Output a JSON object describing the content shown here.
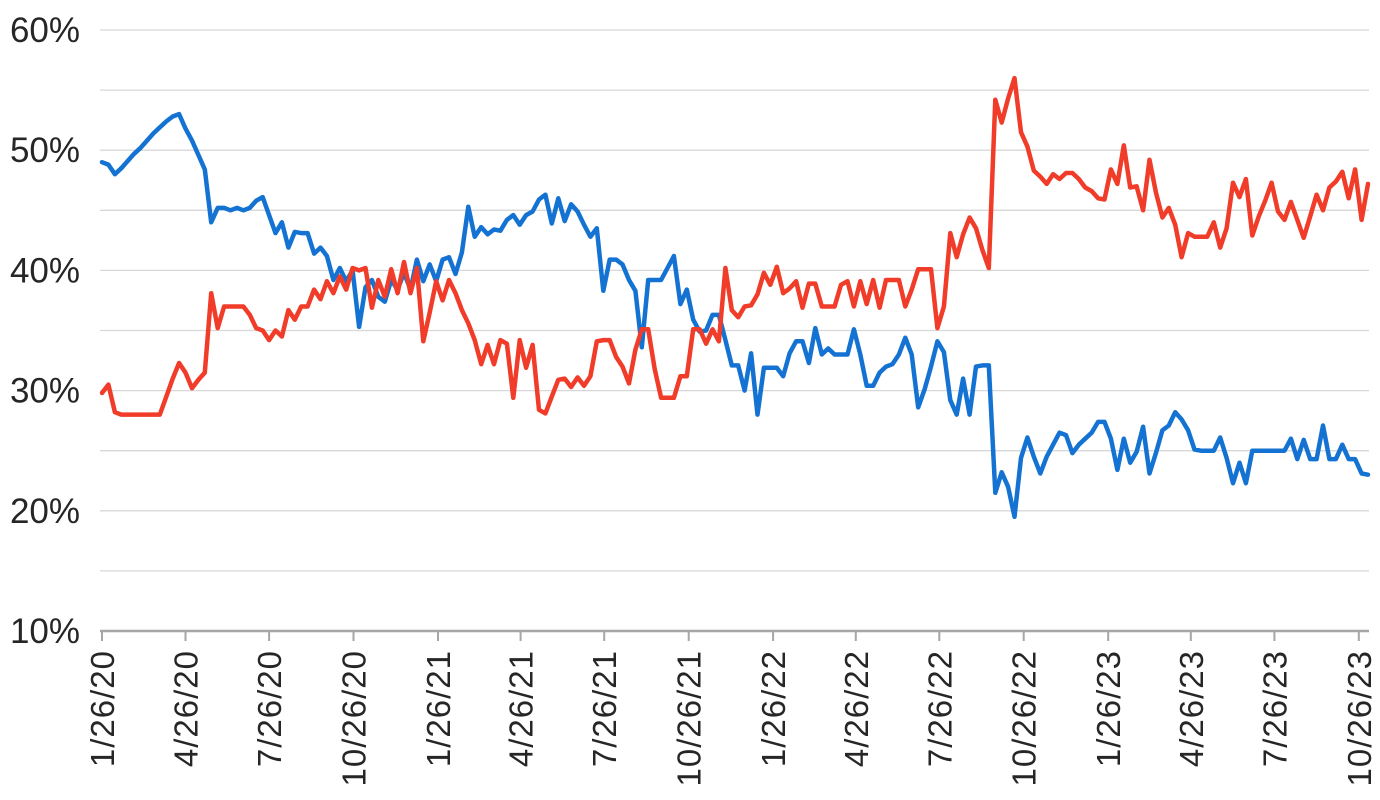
{
  "chart_data": {
    "type": "line",
    "title": "",
    "legend": "none",
    "grid_on": true,
    "x_axis": {
      "unit": "weeks since 1/26/20",
      "total_weeks": 197,
      "tick_labels": [
        "1/26/20",
        "4/26/20",
        "7/26/20",
        "10/26/20",
        "1/26/21",
        "4/26/21",
        "7/26/21",
        "10/26/21",
        "1/26/22",
        "4/26/22",
        "7/26/22",
        "10/26/22",
        "1/26/23",
        "4/26/23",
        "7/26/23",
        "10/26/23"
      ],
      "tick_weeks": [
        0,
        13,
        26,
        39.14,
        52.29,
        65.14,
        78.14,
        91.29,
        104.43,
        117.29,
        130.29,
        143.43,
        156.57,
        169.43,
        182.43,
        195.57
      ]
    },
    "y_axis": {
      "tick_labels": [
        "10%",
        "20%",
        "30%",
        "40%",
        "50%",
        "60%"
      ],
      "tick_values": [
        10,
        20,
        30,
        40,
        50,
        60
      ],
      "min": 10,
      "max": 60,
      "gridline_step": 5
    },
    "series": [
      {
        "name": "blue",
        "color": "#1473D2",
        "values": [
          49.0,
          48.8,
          48.0,
          48.5,
          49.1,
          49.7,
          50.2,
          50.8,
          51.4,
          51.9,
          52.4,
          52.8,
          53.0,
          51.8,
          50.8,
          49.6,
          48.4,
          44.0,
          45.2,
          45.2,
          45.0,
          45.2,
          45.0,
          45.2,
          45.8,
          46.1,
          44.6,
          43.1,
          44.0,
          41.9,
          43.2,
          43.1,
          43.1,
          41.4,
          41.9,
          41.2,
          39.2,
          40.2,
          39.1,
          40.0,
          35.3,
          38.6,
          39.2,
          37.8,
          37.4,
          39.2,
          38.4,
          39.8,
          38.4,
          40.9,
          39.1,
          40.5,
          39.1,
          40.9,
          41.1,
          39.7,
          41.5,
          45.3,
          42.8,
          43.6,
          43.0,
          43.4,
          43.3,
          44.2,
          44.6,
          43.8,
          44.6,
          44.9,
          45.9,
          46.3,
          43.9,
          46.0,
          44.1,
          45.5,
          44.9,
          43.8,
          42.8,
          43.5,
          38.3,
          40.9,
          40.9,
          40.5,
          39.2,
          38.3,
          33.6,
          39.2,
          39.2,
          39.2,
          40.2,
          41.2,
          37.2,
          38.4,
          35.9,
          34.9,
          35.0,
          36.3,
          36.3,
          34.2,
          32.1,
          32.1,
          30.0,
          33.1,
          28.0,
          31.9,
          31.9,
          31.9,
          31.2,
          33.1,
          34.1,
          34.1,
          32.3,
          35.2,
          33.0,
          33.5,
          33.0,
          33.0,
          33.0,
          35.1,
          33.0,
          30.4,
          30.4,
          31.5,
          32.0,
          32.2,
          33.0,
          34.4,
          33.0,
          28.6,
          30.1,
          32.0,
          34.1,
          33.2,
          29.2,
          28.0,
          31.0,
          28.0,
          32.0,
          32.1,
          32.1,
          21.5,
          23.2,
          22.0,
          19.5,
          24.4,
          26.1,
          24.5,
          23.1,
          24.5,
          25.5,
          26.5,
          26.3,
          24.8,
          25.5,
          26.0,
          26.5,
          27.4,
          27.4,
          26.0,
          23.4,
          26.0,
          24.0,
          24.9,
          27.0,
          23.1,
          24.8,
          26.7,
          27.1,
          28.2,
          27.6,
          26.7,
          25.1,
          25.0,
          25.0,
          25.0,
          26.1,
          24.4,
          22.3,
          24.0,
          22.3,
          25.0,
          25.0,
          25.0,
          25.0,
          25.0,
          25.0,
          26.0,
          24.3,
          25.9,
          24.3,
          24.3,
          27.1,
          24.3,
          24.3,
          25.5,
          24.3,
          24.3,
          23.1,
          23.0
        ]
      },
      {
        "name": "red",
        "color": "#F03C28",
        "values": [
          29.8,
          30.5,
          28.2,
          28.0,
          28.0,
          28.0,
          28.0,
          28.0,
          28.0,
          28.0,
          29.5,
          31.0,
          32.3,
          31.5,
          30.2,
          30.9,
          31.5,
          38.1,
          35.2,
          37.0,
          37.0,
          37.0,
          37.0,
          36.3,
          35.2,
          35.0,
          34.2,
          35.0,
          34.5,
          36.7,
          35.9,
          37.0,
          37.0,
          38.4,
          37.6,
          39.1,
          38.1,
          39.5,
          38.4,
          40.2,
          40.0,
          40.2,
          36.9,
          39.2,
          37.8,
          40.1,
          38.1,
          40.7,
          38.1,
          40.2,
          34.1,
          36.5,
          39.1,
          37.5,
          39.2,
          38.1,
          36.7,
          35.6,
          34.2,
          32.2,
          33.8,
          32.2,
          34.2,
          33.9,
          29.4,
          34.2,
          31.9,
          33.8,
          28.4,
          28.1,
          29.5,
          30.9,
          31.0,
          30.3,
          31.1,
          30.4,
          31.2,
          34.1,
          34.2,
          34.2,
          32.8,
          32.0,
          30.6,
          33.4,
          35.1,
          35.1,
          31.8,
          29.4,
          29.4,
          29.4,
          31.2,
          31.2,
          35.1,
          35.1,
          33.9,
          35.1,
          34.1,
          40.2,
          36.7,
          36.1,
          37.0,
          37.1,
          38.0,
          39.8,
          38.8,
          40.3,
          38.1,
          38.5,
          39.1,
          36.9,
          38.9,
          38.9,
          37.0,
          37.0,
          37.0,
          38.8,
          39.1,
          37.0,
          39.1,
          37.2,
          39.2,
          36.9,
          39.2,
          39.2,
          39.2,
          37.0,
          38.4,
          40.1,
          40.1,
          40.1,
          35.2,
          37.0,
          43.1,
          41.1,
          43.0,
          44.4,
          43.5,
          41.7,
          40.2,
          54.2,
          52.3,
          54.3,
          56.0,
          51.5,
          50.3,
          48.3,
          47.8,
          47.2,
          48.0,
          47.6,
          48.1,
          48.1,
          47.6,
          46.9,
          46.6,
          46.0,
          45.9,
          48.4,
          47.2,
          50.4,
          46.9,
          47.0,
          45.0,
          49.2,
          46.5,
          44.4,
          45.2,
          43.8,
          41.1,
          43.1,
          42.8,
          42.8,
          42.8,
          44.0,
          41.9,
          43.5,
          47.3,
          46.1,
          47.6,
          42.9,
          44.5,
          45.8,
          47.3,
          44.9,
          44.2,
          45.7,
          44.2,
          42.7,
          44.5,
          46.3,
          45.0,
          46.9,
          47.4,
          48.2,
          46.0,
          48.4,
          44.2,
          47.2
        ]
      }
    ]
  },
  "colors": {
    "background": "#FFFFFF",
    "gridline": "#D8D8D8",
    "axis": "#A6A6A6",
    "label_text": "#262626",
    "series_blue": "#1473D2",
    "series_red": "#F03C28"
  }
}
